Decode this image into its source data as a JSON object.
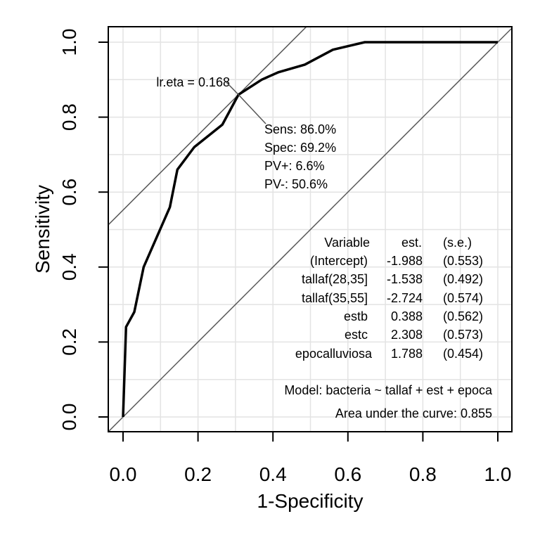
{
  "chart_data": {
    "type": "line",
    "title": "",
    "xlabel": "1-Specificity",
    "ylabel": "Sensitivity",
    "xlim": [
      0,
      1
    ],
    "ylim": [
      0,
      1
    ],
    "x_ticks": [
      "0.0",
      "0.2",
      "0.4",
      "0.6",
      "0.8",
      "1.0"
    ],
    "y_ticks": [
      "0.0",
      "0.2",
      "0.4",
      "0.6",
      "0.8",
      "1.0"
    ],
    "grid": true,
    "series": [
      {
        "x": [
          0.0,
          0.008,
          0.03,
          0.055,
          0.09,
          0.125,
          0.145,
          0.19,
          0.265,
          0.308,
          0.37,
          0.415,
          0.485,
          0.56,
          0.645,
          1.0
        ],
        "y": [
          0.0,
          0.24,
          0.28,
          0.4,
          0.48,
          0.56,
          0.66,
          0.72,
          0.78,
          0.86,
          0.9,
          0.92,
          0.94,
          0.98,
          1.0,
          1.0
        ]
      }
    ],
    "reference_lines": [
      {
        "from": [
          0,
          0
        ],
        "to": [
          1,
          1
        ]
      },
      {
        "through": [
          0.308,
          0.86
        ],
        "slope": 1
      }
    ],
    "optimal_point": {
      "x": 0.308,
      "y": 0.86,
      "label": "lr.eta = 0.168",
      "stats": [
        "Sens: 86.0%",
        "Spec: 69.2%",
        "PV+: 6.6%",
        "PV-: 50.6%"
      ]
    },
    "coef_table": {
      "headers": [
        "Variable",
        "est.",
        "(s.e.)"
      ],
      "rows": [
        [
          "(Intercept)",
          "-1.988",
          "(0.553)"
        ],
        [
          "tallaf(28,35]",
          "-1.538",
          "(0.492)"
        ],
        [
          "tallaf(35,55]",
          "-2.724",
          "(0.574)"
        ],
        [
          "estb",
          "0.388",
          "(0.562)"
        ],
        [
          "estc",
          "2.308",
          "(0.573)"
        ],
        [
          "epocalluviosa",
          "1.788",
          "(0.454)"
        ]
      ]
    },
    "model_text": "Model:  bacteria ~ tallaf + est + epoca",
    "auc_text": "Area under the curve: 0.855"
  }
}
